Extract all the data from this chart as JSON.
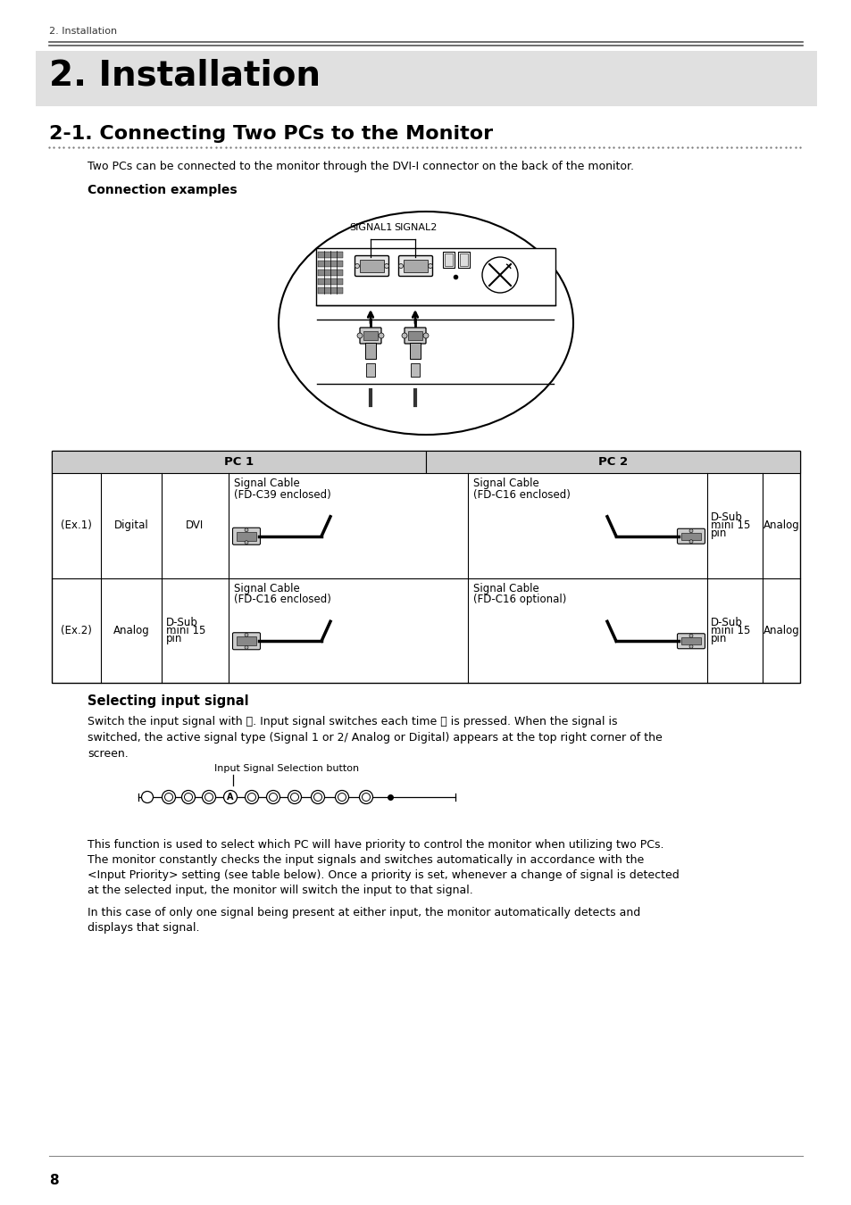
{
  "page_header": "2. Installation",
  "main_title": "2. Installation",
  "section_title": "2-1. Connecting Two PCs to the Monitor",
  "intro_text": "Two PCs can be connected to the monitor through the DVI-I connector on the back of the monitor.",
  "connection_examples_title": "Connection examples",
  "selecting_signal_title": "Selecting input signal",
  "selecting_signal_text1": "Switch the input signal with ⓢ. Input signal switches each time ⓢ is pressed. When the signal is",
  "selecting_signal_text2": "switched, the active signal type (Signal 1 or 2/ Analog or Digital) appears at the top right corner of the",
  "selecting_signal_text3": "screen.",
  "input_signal_label": "Input Signal Selection button",
  "body_text1": "This function is used to select which PC will have priority to control the monitor when utilizing two PCs.",
  "body_text2": "The monitor constantly checks the input signals and switches automatically in accordance with the",
  "body_text3": "<Input Priority> setting (see table below). Once a priority is set, whenever a change of signal is detected",
  "body_text4": "at the selected input, the monitor will switch the input to that signal.",
  "body_text5": "In this case of only one signal being present at either input, the monitor automatically detects and",
  "body_text6": "displays that signal.",
  "page_number": "8",
  "bg_color": "#ffffff",
  "header_bg": "#e0e0e0",
  "table_header_bg": "#cccccc",
  "text_color": "#000000"
}
